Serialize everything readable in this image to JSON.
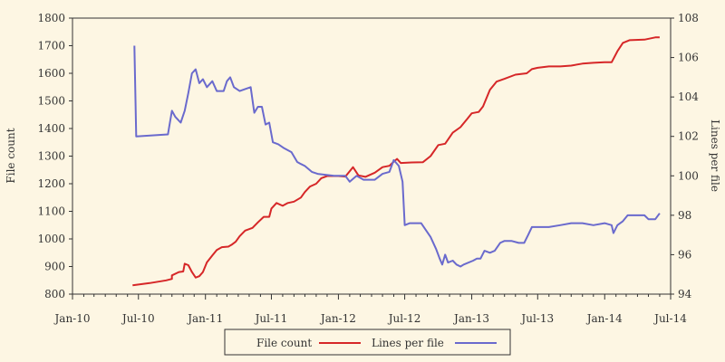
{
  "colors": {
    "background": "#fdf6e3",
    "axis": "#333333",
    "file_count": "#d62728",
    "lines_per_file": "#6a6acd"
  },
  "chart_data": {
    "type": "line",
    "xlabel": "",
    "x_range": [
      "2010-01-01",
      "2014-07-01"
    ],
    "x_ticks": [
      {
        "date": "2010-01-01",
        "label": "Jan-10"
      },
      {
        "date": "2010-07-01",
        "label": "Jul-10"
      },
      {
        "date": "2011-01-01",
        "label": "Jan-11"
      },
      {
        "date": "2011-07-01",
        "label": "Jul-11"
      },
      {
        "date": "2012-01-01",
        "label": "Jan-12"
      },
      {
        "date": "2012-07-01",
        "label": "Jul-12"
      },
      {
        "date": "2013-01-01",
        "label": "Jan-13"
      },
      {
        "date": "2013-07-01",
        "label": "Jul-13"
      },
      {
        "date": "2014-01-01",
        "label": "Jan-14"
      },
      {
        "date": "2014-07-01",
        "label": "Jul-14"
      }
    ],
    "y_left": {
      "label": "File count",
      "range": [
        800,
        1800
      ],
      "ticks": [
        "800",
        "900",
        "1000",
        "1100",
        "1200",
        "1300",
        "1400",
        "1500",
        "1600",
        "1700",
        "1800"
      ]
    },
    "y_right": {
      "label": "Lines per file",
      "range": [
        94,
        108
      ],
      "ticks": [
        "94",
        "96",
        "98",
        "100",
        "102",
        "104",
        "106",
        "108"
      ]
    },
    "grid": false,
    "legend_position": "bottom-center",
    "series": [
      {
        "name": "File count",
        "axis": "left",
        "color": "#d62728",
        "points": [
          [
            "2010-06-15",
            832
          ],
          [
            "2010-08-01",
            840
          ],
          [
            "2010-09-15",
            850
          ],
          [
            "2010-10-01",
            855
          ],
          [
            "2010-10-01",
            868
          ],
          [
            "2010-10-20",
            880
          ],
          [
            "2010-11-01",
            882
          ],
          [
            "2010-11-05",
            910
          ],
          [
            "2010-11-15",
            905
          ],
          [
            "2010-11-25",
            880
          ],
          [
            "2010-12-05",
            860
          ],
          [
            "2010-12-15",
            865
          ],
          [
            "2010-12-25",
            880
          ],
          [
            "2011-01-05",
            915
          ],
          [
            "2011-01-20",
            940
          ],
          [
            "2011-02-01",
            960
          ],
          [
            "2011-02-15",
            970
          ],
          [
            "2011-03-05",
            972
          ],
          [
            "2011-03-15",
            980
          ],
          [
            "2011-03-25",
            990
          ],
          [
            "2011-04-05",
            1010
          ],
          [
            "2011-04-20",
            1030
          ],
          [
            "2011-05-10",
            1040
          ],
          [
            "2011-05-25",
            1060
          ],
          [
            "2011-06-10",
            1080
          ],
          [
            "2011-06-25",
            1080
          ],
          [
            "2011-07-01",
            1110
          ],
          [
            "2011-07-15",
            1130
          ],
          [
            "2011-08-01",
            1120
          ],
          [
            "2011-08-15",
            1130
          ],
          [
            "2011-09-01",
            1135
          ],
          [
            "2011-09-20",
            1150
          ],
          [
            "2011-10-01",
            1170
          ],
          [
            "2011-10-15",
            1190
          ],
          [
            "2011-11-01",
            1200
          ],
          [
            "2011-11-15",
            1220
          ],
          [
            "2011-12-01",
            1228
          ],
          [
            "2012-01-01",
            1228
          ],
          [
            "2012-01-20",
            1226
          ],
          [
            "2012-02-10",
            1260
          ],
          [
            "2012-02-25",
            1230
          ],
          [
            "2012-03-15",
            1225
          ],
          [
            "2012-04-10",
            1240
          ],
          [
            "2012-05-01",
            1260
          ],
          [
            "2012-05-20",
            1265
          ],
          [
            "2012-06-01",
            1280
          ],
          [
            "2012-06-10",
            1290
          ],
          [
            "2012-06-20",
            1275
          ],
          [
            "2012-07-20",
            1277
          ],
          [
            "2012-08-20",
            1278
          ],
          [
            "2012-09-10",
            1300
          ],
          [
            "2012-10-01",
            1340
          ],
          [
            "2012-10-20",
            1345
          ],
          [
            "2012-11-10",
            1385
          ],
          [
            "2012-12-01",
            1405
          ],
          [
            "2012-12-20",
            1435
          ],
          [
            "2013-01-01",
            1455
          ],
          [
            "2013-01-20",
            1460
          ],
          [
            "2013-02-01",
            1480
          ],
          [
            "2013-02-20",
            1540
          ],
          [
            "2013-03-10",
            1570
          ],
          [
            "2013-04-01",
            1580
          ],
          [
            "2013-05-01",
            1595
          ],
          [
            "2013-06-01",
            1600
          ],
          [
            "2013-06-15",
            1615
          ],
          [
            "2013-07-01",
            1620
          ],
          [
            "2013-08-01",
            1625
          ],
          [
            "2013-09-01",
            1625
          ],
          [
            "2013-10-01",
            1628
          ],
          [
            "2013-11-01",
            1635
          ],
          [
            "2013-12-01",
            1638
          ],
          [
            "2014-01-01",
            1640
          ],
          [
            "2014-01-20",
            1640
          ],
          [
            "2014-02-05",
            1680
          ],
          [
            "2014-02-20",
            1710
          ],
          [
            "2014-03-10",
            1720
          ],
          [
            "2014-04-20",
            1722
          ],
          [
            "2014-05-20",
            1730
          ],
          [
            "2014-06-01",
            1730
          ]
        ]
      },
      {
        "name": "Lines per file",
        "axis": "right",
        "color": "#6a6acd",
        "points": [
          [
            "2010-06-20",
            106.6
          ],
          [
            "2010-06-25",
            102.0
          ],
          [
            "2010-09-20",
            102.1
          ],
          [
            "2010-10-01",
            103.3
          ],
          [
            "2010-10-10",
            103.0
          ],
          [
            "2010-10-25",
            102.7
          ],
          [
            "2010-11-05",
            103.3
          ],
          [
            "2010-11-15",
            104.2
          ],
          [
            "2010-11-25",
            105.2
          ],
          [
            "2010-12-05",
            105.4
          ],
          [
            "2010-12-15",
            104.7
          ],
          [
            "2010-12-25",
            104.9
          ],
          [
            "2011-01-05",
            104.5
          ],
          [
            "2011-01-20",
            104.8
          ],
          [
            "2011-02-01",
            104.3
          ],
          [
            "2011-02-20",
            104.3
          ],
          [
            "2011-03-01",
            104.8
          ],
          [
            "2011-03-10",
            105.0
          ],
          [
            "2011-03-20",
            104.5
          ],
          [
            "2011-04-05",
            104.3
          ],
          [
            "2011-04-20",
            104.4
          ],
          [
            "2011-05-05",
            104.5
          ],
          [
            "2011-05-15",
            103.2
          ],
          [
            "2011-05-25",
            103.5
          ],
          [
            "2011-06-05",
            103.5
          ],
          [
            "2011-06-15",
            102.6
          ],
          [
            "2011-06-25",
            102.7
          ],
          [
            "2011-07-05",
            101.7
          ],
          [
            "2011-07-20",
            101.6
          ],
          [
            "2011-08-05",
            101.4
          ],
          [
            "2011-08-25",
            101.2
          ],
          [
            "2011-09-10",
            100.7
          ],
          [
            "2011-09-20",
            100.6
          ],
          [
            "2011-10-01",
            100.5
          ],
          [
            "2011-10-20",
            100.2
          ],
          [
            "2011-11-05",
            100.1
          ],
          [
            "2011-12-20",
            100.0
          ],
          [
            "2012-01-20",
            100.0
          ],
          [
            "2012-02-01",
            99.7
          ],
          [
            "2012-02-20",
            100.0
          ],
          [
            "2012-03-10",
            99.8
          ],
          [
            "2012-04-10",
            99.8
          ],
          [
            "2012-05-01",
            100.1
          ],
          [
            "2012-05-20",
            100.2
          ],
          [
            "2012-06-01",
            100.8
          ],
          [
            "2012-06-15",
            100.5
          ],
          [
            "2012-06-25",
            99.7
          ],
          [
            "2012-07-01",
            97.5
          ],
          [
            "2012-07-15",
            97.6
          ],
          [
            "2012-08-15",
            97.6
          ],
          [
            "2012-09-10",
            96.9
          ],
          [
            "2012-09-25",
            96.3
          ],
          [
            "2012-10-05",
            95.8
          ],
          [
            "2012-10-12",
            95.5
          ],
          [
            "2012-10-20",
            96.0
          ],
          [
            "2012-10-28",
            95.6
          ],
          [
            "2012-11-10",
            95.7
          ],
          [
            "2012-11-20",
            95.5
          ],
          [
            "2012-12-01",
            95.4
          ],
          [
            "2012-12-10",
            95.5
          ],
          [
            "2013-01-05",
            95.7
          ],
          [
            "2013-01-15",
            95.8
          ],
          [
            "2013-01-25",
            95.8
          ],
          [
            "2013-02-05",
            96.2
          ],
          [
            "2013-02-20",
            96.1
          ],
          [
            "2013-03-05",
            96.2
          ],
          [
            "2013-03-20",
            96.6
          ],
          [
            "2013-04-01",
            96.7
          ],
          [
            "2013-04-20",
            96.7
          ],
          [
            "2013-05-10",
            96.6
          ],
          [
            "2013-05-25",
            96.6
          ],
          [
            "2013-06-05",
            97.0
          ],
          [
            "2013-06-15",
            97.4
          ],
          [
            "2013-07-01",
            97.4
          ],
          [
            "2013-08-01",
            97.4
          ],
          [
            "2013-09-01",
            97.5
          ],
          [
            "2013-10-01",
            97.6
          ],
          [
            "2013-11-01",
            97.6
          ],
          [
            "2013-12-01",
            97.5
          ],
          [
            "2014-01-01",
            97.6
          ],
          [
            "2014-01-20",
            97.5
          ],
          [
            "2014-01-25",
            97.1
          ],
          [
            "2014-02-05",
            97.5
          ],
          [
            "2014-02-20",
            97.7
          ],
          [
            "2014-03-05",
            98.0
          ],
          [
            "2014-04-20",
            98.0
          ],
          [
            "2014-05-01",
            97.8
          ],
          [
            "2014-05-20",
            97.8
          ],
          [
            "2014-06-01",
            98.1
          ]
        ]
      }
    ]
  }
}
